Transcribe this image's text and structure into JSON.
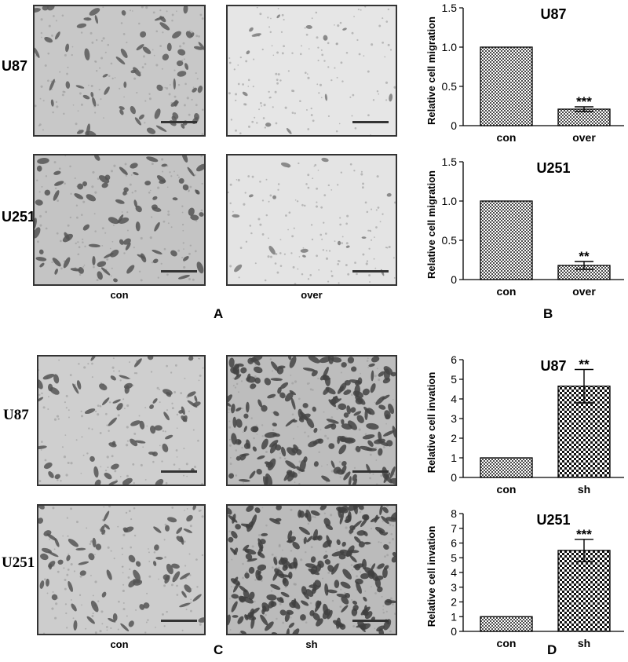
{
  "panels": {
    "A": {
      "letter": "A",
      "rows": [
        "U87",
        "U251"
      ],
      "cols": [
        "con",
        "over"
      ]
    },
    "B": {
      "letter": "B"
    },
    "C": {
      "letter": "C",
      "rows": [
        "U87",
        "U251"
      ],
      "cols": [
        "con",
        "sh"
      ]
    },
    "D": {
      "letter": "D"
    }
  },
  "chart_data": [
    {
      "id": "B1",
      "type": "bar",
      "title": "U87",
      "categories": [
        "con",
        "over"
      ],
      "values": [
        1.0,
        0.21
      ],
      "errors": [
        0,
        0.03
      ],
      "significance": [
        "",
        "***"
      ],
      "ylabel": "Relative cell migration",
      "xlabel": "",
      "ylim": [
        0,
        1.5
      ],
      "yticks": [
        0,
        0.5,
        1.0,
        1.5
      ],
      "ytick_labels": [
        "0",
        "0.5",
        "1.0",
        "1.5"
      ],
      "patterns": [
        "fine-check",
        "fine-check"
      ],
      "grid": false,
      "legend": "none"
    },
    {
      "id": "B2",
      "type": "bar",
      "title": "U251",
      "categories": [
        "con",
        "over"
      ],
      "values": [
        1.0,
        0.18
      ],
      "errors": [
        0,
        0.05
      ],
      "significance": [
        "",
        "**"
      ],
      "ylabel": "Relative cell migration",
      "xlabel": "",
      "ylim": [
        0,
        1.5
      ],
      "yticks": [
        0,
        0.5,
        1.0,
        1.5
      ],
      "ytick_labels": [
        "0",
        "0.5",
        "1.0",
        "1.5"
      ],
      "patterns": [
        "fine-check",
        "fine-check"
      ],
      "grid": false,
      "legend": "none"
    },
    {
      "id": "D1",
      "type": "bar",
      "title": "U87",
      "categories": [
        "con",
        "sh"
      ],
      "values": [
        1.0,
        4.65
      ],
      "errors": [
        0,
        0.85
      ],
      "significance": [
        "",
        "**"
      ],
      "ylabel": "Relative cell invation",
      "xlabel": "",
      "ylim": [
        0,
        6
      ],
      "yticks": [
        0,
        1,
        2,
        3,
        4,
        5,
        6
      ],
      "ytick_labels": [
        "0",
        "1",
        "2",
        "3",
        "4",
        "5",
        "6"
      ],
      "patterns": [
        "fine-check",
        "coarse-check"
      ],
      "grid": false,
      "legend": "none"
    },
    {
      "id": "D2",
      "type": "bar",
      "title": "U251",
      "categories": [
        "con",
        "sh"
      ],
      "values": [
        1.0,
        5.5
      ],
      "errors": [
        0,
        0.75
      ],
      "significance": [
        "",
        "***"
      ],
      "ylabel": "Relative cell invation",
      "xlabel": "",
      "ylim": [
        0,
        8
      ],
      "yticks": [
        0,
        1,
        2,
        3,
        4,
        5,
        6,
        7,
        8
      ],
      "ytick_labels": [
        "0",
        "1",
        "2",
        "3",
        "4",
        "5",
        "6",
        "7",
        "8"
      ],
      "patterns": [
        "fine-check",
        "coarse-check"
      ],
      "grid": false,
      "legend": "none"
    }
  ]
}
